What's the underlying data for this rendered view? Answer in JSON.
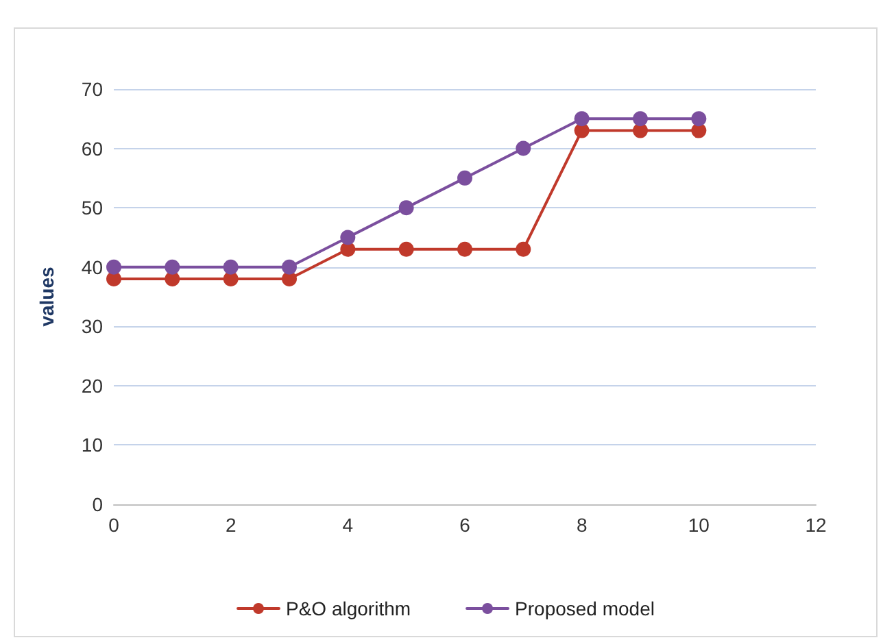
{
  "chart_data": {
    "type": "line",
    "ylabel": "values",
    "x": [
      0,
      1,
      2,
      3,
      4,
      5,
      6,
      7,
      8,
      9,
      10
    ],
    "series": [
      {
        "name": "P&O algorithm",
        "color": "#c0392b",
        "values": [
          38,
          38,
          38,
          38,
          43,
          43,
          43,
          43,
          63,
          63,
          63
        ]
      },
      {
        "name": "Proposed model",
        "color": "#7b4f9e",
        "values": [
          40,
          40,
          40,
          40,
          45,
          50,
          55,
          60,
          65,
          65,
          65
        ]
      }
    ],
    "xlim": [
      0,
      12
    ],
    "xticks": [
      0,
      2,
      4,
      6,
      8,
      10,
      12
    ],
    "ylim": [
      0,
      70
    ],
    "yticks": [
      0,
      10,
      20,
      30,
      40,
      50,
      60,
      70
    ],
    "grid": "y",
    "legend": "bottom",
    "marker": "circle",
    "line_style": "solid"
  }
}
